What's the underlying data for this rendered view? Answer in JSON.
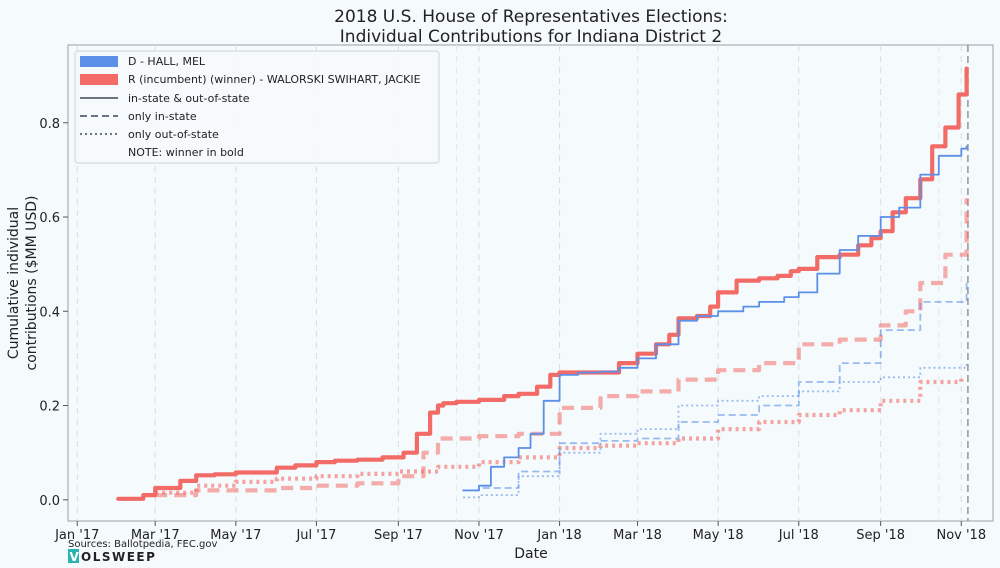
{
  "chart_data": {
    "type": "line",
    "title_line1": "2018 U.S. House of Representatives Elections:",
    "title_line2": "Individual Contributions for Indiana District 2",
    "xlabel": "Date",
    "ylabel_line1": "Cumulative individual",
    "ylabel_line2": "contributions ($MM USD)",
    "x_tick_labels": [
      "Jan '17",
      "Mar '17",
      "May '17",
      "Jul '17",
      "Sep '17",
      "Nov '17",
      "Jan '18",
      "Mar '18",
      "May '18",
      "Jul '18",
      "Sep '18",
      "Nov '18"
    ],
    "x_tick_dates": [
      "2017-01-01",
      "2017-03-01",
      "2017-05-01",
      "2017-07-01",
      "2017-09-01",
      "2017-11-01",
      "2018-01-01",
      "2018-03-01",
      "2018-05-01",
      "2018-07-01",
      "2018-09-01",
      "2018-11-01"
    ],
    "xlim": [
      "2016-12-25",
      "2018-11-25"
    ],
    "y_ticks": [
      0.0,
      0.2,
      0.4,
      0.6,
      0.8
    ],
    "y_tick_labels": [
      "0.0",
      "0.2",
      "0.4",
      "0.6",
      "0.8"
    ],
    "ylim": [
      -0.045,
      0.965
    ],
    "election_date": "2018-11-06",
    "grid": "vertical-dashed",
    "legend_placement": "top-left",
    "legend": {
      "d_label": "D - HALL, MEL",
      "r_label": "R (incumbent) (winner) - WALORSKI SWIHART, JACKIE",
      "style_total": "in-state & out-of-state",
      "style_in": "only in-state",
      "style_out": "only out-of-state",
      "note": "NOTE: winner in bold"
    },
    "colors": {
      "democrat": "#5b8fe8",
      "republican": "#f26b66"
    },
    "series": [
      {
        "name": "R (incumbent) (winner) - WALORSKI SWIHART, JACKIE",
        "party": "R",
        "style": "total",
        "x": [
          "2017-02-01",
          "2017-02-20",
          "2017-03-01",
          "2017-03-20",
          "2017-04-01",
          "2017-04-15",
          "2017-05-01",
          "2017-06-01",
          "2017-06-15",
          "2017-07-01",
          "2017-07-15",
          "2017-08-01",
          "2017-08-20",
          "2017-09-05",
          "2017-09-15",
          "2017-09-25",
          "2017-10-01",
          "2017-10-05",
          "2017-10-15",
          "2017-11-01",
          "2017-11-20",
          "2017-12-01",
          "2017-12-15",
          "2017-12-25",
          "2018-01-01",
          "2018-01-15",
          "2018-02-01",
          "2018-02-15",
          "2018-03-01",
          "2018-03-15",
          "2018-03-25",
          "2018-04-01",
          "2018-04-15",
          "2018-04-25",
          "2018-05-01",
          "2018-05-15",
          "2018-06-01",
          "2018-06-15",
          "2018-06-25",
          "2018-07-01",
          "2018-07-15",
          "2018-08-01",
          "2018-08-15",
          "2018-08-25",
          "2018-09-01",
          "2018-09-10",
          "2018-09-20",
          "2018-10-01",
          "2018-10-10",
          "2018-10-20",
          "2018-10-30",
          "2018-11-05"
        ],
        "y": [
          0.002,
          0.01,
          0.025,
          0.04,
          0.052,
          0.054,
          0.058,
          0.068,
          0.073,
          0.08,
          0.083,
          0.085,
          0.09,
          0.1,
          0.14,
          0.185,
          0.2,
          0.205,
          0.208,
          0.212,
          0.22,
          0.225,
          0.24,
          0.265,
          0.27,
          0.27,
          0.27,
          0.29,
          0.31,
          0.33,
          0.35,
          0.385,
          0.39,
          0.41,
          0.44,
          0.465,
          0.47,
          0.475,
          0.485,
          0.49,
          0.515,
          0.52,
          0.54,
          0.555,
          0.57,
          0.61,
          0.64,
          0.68,
          0.75,
          0.79,
          0.86,
          0.915
        ]
      },
      {
        "name": "D - HALL, MEL",
        "party": "D",
        "style": "total",
        "x": [
          "2017-10-20",
          "2017-11-01",
          "2017-11-10",
          "2017-11-20",
          "2017-12-01",
          "2017-12-10",
          "2017-12-20",
          "2018-01-01",
          "2018-01-15",
          "2018-02-01",
          "2018-02-15",
          "2018-03-01",
          "2018-03-15",
          "2018-04-01",
          "2018-04-15",
          "2018-05-01",
          "2018-05-20",
          "2018-06-01",
          "2018-06-20",
          "2018-07-01",
          "2018-07-15",
          "2018-08-01",
          "2018-08-15",
          "2018-09-01",
          "2018-09-15",
          "2018-10-01",
          "2018-10-15",
          "2018-11-01",
          "2018-11-05"
        ],
        "y": [
          0.02,
          0.03,
          0.07,
          0.09,
          0.11,
          0.14,
          0.21,
          0.265,
          0.27,
          0.272,
          0.28,
          0.3,
          0.33,
          0.38,
          0.39,
          0.4,
          0.41,
          0.42,
          0.43,
          0.44,
          0.48,
          0.53,
          0.56,
          0.6,
          0.62,
          0.69,
          0.73,
          0.745,
          0.75
        ]
      },
      {
        "name": "R (incumbent) (winner) - WALORSKI SWIHART, JACKIE",
        "party": "R",
        "style": "in",
        "x": [
          "2017-03-01",
          "2017-04-01",
          "2017-05-01",
          "2017-06-01",
          "2017-07-01",
          "2017-08-01",
          "2017-09-01",
          "2017-09-20",
          "2017-10-01",
          "2017-11-01",
          "2017-12-01",
          "2018-01-01",
          "2018-02-01",
          "2018-03-01",
          "2018-04-01",
          "2018-05-01",
          "2018-06-01",
          "2018-07-01",
          "2018-08-01",
          "2018-09-01",
          "2018-09-20",
          "2018-10-01",
          "2018-10-20",
          "2018-11-05"
        ],
        "y": [
          0.01,
          0.02,
          0.02,
          0.025,
          0.03,
          0.035,
          0.05,
          0.1,
          0.13,
          0.135,
          0.14,
          0.195,
          0.22,
          0.23,
          0.255,
          0.275,
          0.29,
          0.33,
          0.34,
          0.37,
          0.4,
          0.46,
          0.52,
          0.64
        ]
      },
      {
        "name": "D - HALL, MEL",
        "party": "D",
        "style": "in",
        "x": [
          "2017-10-20",
          "2017-11-01",
          "2017-12-01",
          "2018-01-01",
          "2018-02-01",
          "2018-03-01",
          "2018-04-01",
          "2018-05-01",
          "2018-06-01",
          "2018-07-01",
          "2018-08-01",
          "2018-09-01",
          "2018-10-01",
          "2018-11-05"
        ],
        "y": [
          0.02,
          0.025,
          0.06,
          0.12,
          0.125,
          0.13,
          0.165,
          0.18,
          0.2,
          0.25,
          0.29,
          0.36,
          0.42,
          0.465
        ]
      },
      {
        "name": "R (incumbent) (winner) - WALORSKI SWIHART, JACKIE",
        "party": "R",
        "style": "out",
        "x": [
          "2017-03-01",
          "2017-04-01",
          "2017-05-01",
          "2017-06-01",
          "2017-07-01",
          "2017-08-01",
          "2017-09-01",
          "2017-10-01",
          "2017-11-01",
          "2017-12-01",
          "2018-01-01",
          "2018-02-01",
          "2018-03-01",
          "2018-04-01",
          "2018-05-01",
          "2018-06-01",
          "2018-07-01",
          "2018-08-01",
          "2018-09-01",
          "2018-10-01",
          "2018-11-01"
        ],
        "y": [
          0.015,
          0.03,
          0.038,
          0.045,
          0.05,
          0.055,
          0.06,
          0.07,
          0.08,
          0.09,
          0.11,
          0.115,
          0.12,
          0.13,
          0.15,
          0.165,
          0.18,
          0.19,
          0.21,
          0.25,
          0.265
        ]
      },
      {
        "name": "D - HALL, MEL",
        "party": "D",
        "style": "out",
        "x": [
          "2017-10-20",
          "2017-11-01",
          "2017-12-01",
          "2018-01-01",
          "2018-02-01",
          "2018-03-01",
          "2018-04-01",
          "2018-05-01",
          "2018-06-01",
          "2018-07-01",
          "2018-08-01",
          "2018-09-01",
          "2018-10-01",
          "2018-11-05"
        ],
        "y": [
          0.005,
          0.01,
          0.05,
          0.1,
          0.14,
          0.15,
          0.2,
          0.21,
          0.22,
          0.23,
          0.25,
          0.26,
          0.28,
          0.29
        ]
      }
    ]
  },
  "footer": {
    "sources": "Sources: Ballotpedia, FEC.gov",
    "logo_text": "OLSWEEP",
    "logo_letter": "V"
  }
}
